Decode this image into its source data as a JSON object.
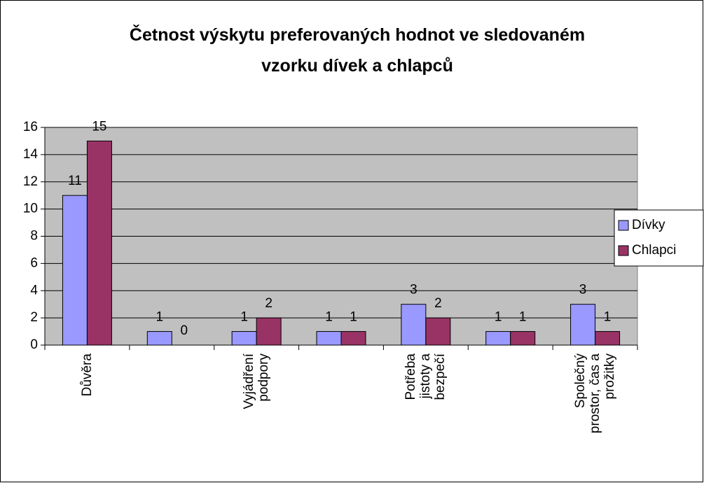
{
  "chart_data": {
    "type": "bar",
    "title": "Četnost výskytu preferovaných hodnot ve sledovaném vzorku dívek a chlapců",
    "categories": [
      "Důvěra",
      null,
      "Vyjádření podpory",
      null,
      "Potřeba jistoty a bezpečí",
      null,
      "Společný prostor, čas a prožitky"
    ],
    "series": [
      {
        "name": "Dívky",
        "color": "#9999ff",
        "values": [
          11,
          1,
          1,
          1,
          3,
          1,
          3
        ]
      },
      {
        "name": "Chlapci",
        "color": "#993366",
        "values": [
          15,
          0,
          2,
          1,
          2,
          1,
          1
        ]
      }
    ],
    "ylim": [
      0,
      16
    ],
    "yticks": [
      0,
      2,
      4,
      6,
      8,
      10,
      12,
      14,
      16
    ],
    "grid": true,
    "legend": "right",
    "plot_background": "#c0c0c0"
  }
}
